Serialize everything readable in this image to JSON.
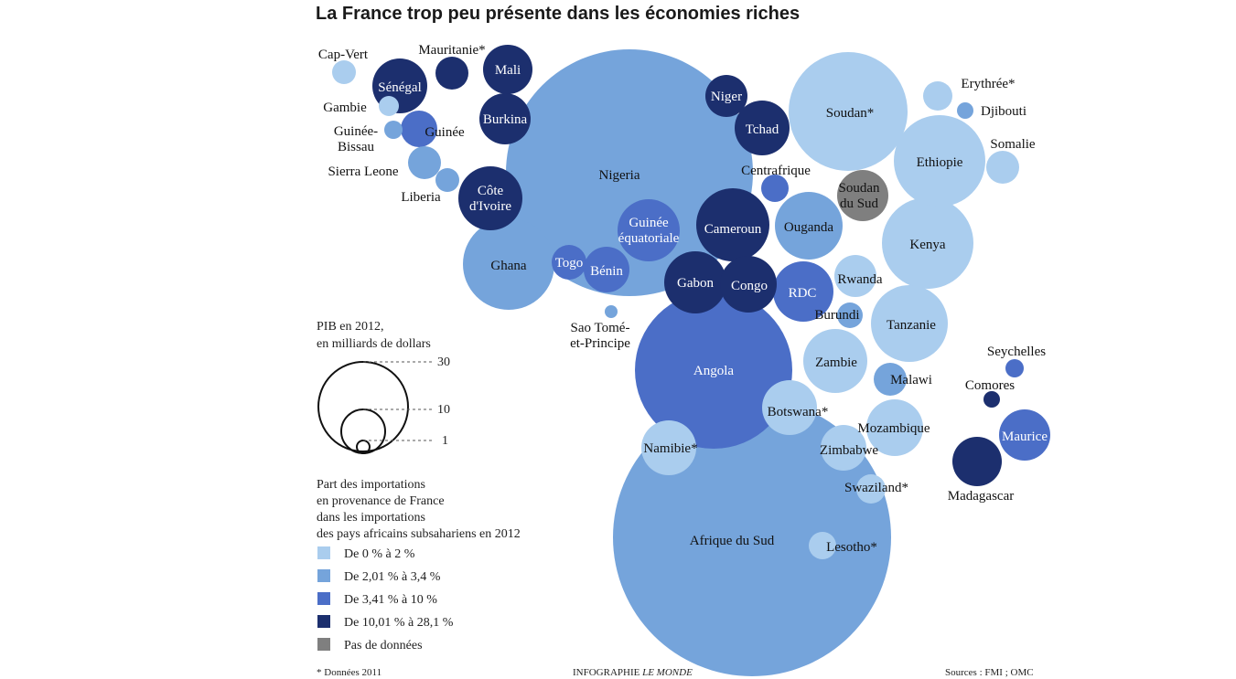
{
  "title": "La France trop peu présente dans les économies riches",
  "colors": {
    "cat1": "#aacdee",
    "cat2": "#75a4db",
    "cat3": "#4b6ec7",
    "cat4": "#1c2f6e",
    "nodata": "#7f7f7f"
  },
  "size_legend": {
    "title_line1": "PIB en 2012,",
    "title_line2": "en milliards de dollars",
    "values": [
      "30",
      "10",
      "1"
    ]
  },
  "color_legend": {
    "title_lines": [
      "Part des importations",
      "en provenance de France",
      "dans les importations",
      "des pays africains subsahariens en 2012"
    ],
    "items": [
      {
        "label": "De 0 % à 2 %",
        "color": "cat1"
      },
      {
        "label": "De 2,01 % à 3,4 %",
        "color": "cat2"
      },
      {
        "label": "De 3,41 % à 10 %",
        "color": "cat3"
      },
      {
        "label": "De 10,01 % à 28,1 %",
        "color": "cat4"
      },
      {
        "label": "Pas de données",
        "color": "nodata"
      }
    ]
  },
  "footer": {
    "note": "* Données 2011",
    "credit_prefix": "INFOGRAPHIE ",
    "credit_brand": "LE MONDE",
    "sources": "Sources : FMI ; OMC"
  },
  "countries": [
    {
      "id": "afrique-du-sud",
      "name": "Afrique du Sud",
      "cat": "cat2"
    },
    {
      "id": "nigeria",
      "name": "Nigeria",
      "cat": "cat2"
    },
    {
      "id": "angola",
      "name": "Angola",
      "cat": "cat3"
    },
    {
      "id": "soudan",
      "name": "Soudan*",
      "cat": "cat1"
    },
    {
      "id": "ghana",
      "name": "Ghana",
      "cat": "cat2"
    },
    {
      "id": "kenya",
      "name": "Kenya",
      "cat": "cat1"
    },
    {
      "id": "ethiopie",
      "name": "Ethiopie",
      "cat": "cat1"
    },
    {
      "id": "tanzanie",
      "name": "Tanzanie",
      "cat": "cat1"
    },
    {
      "id": "cote-divoire",
      "name": "Côte d'Ivoire",
      "cat": "cat4"
    },
    {
      "id": "cameroun",
      "name": "Cameroun",
      "cat": "cat4"
    },
    {
      "id": "ouganda",
      "name": "Ouganda",
      "cat": "cat2"
    },
    {
      "id": "zambie",
      "name": "Zambie",
      "cat": "cat1"
    },
    {
      "id": "rdc",
      "name": "RDC",
      "cat": "cat3"
    },
    {
      "id": "gabon",
      "name": "Gabon",
      "cat": "cat4"
    },
    {
      "id": "congo",
      "name": "Congo",
      "cat": "cat4"
    },
    {
      "id": "tchad",
      "name": "Tchad",
      "cat": "cat4"
    },
    {
      "id": "guinee-equatoriale",
      "name": "Guinée équatoriale",
      "cat": "cat3"
    },
    {
      "id": "mozambique",
      "name": "Mozambique",
      "cat": "cat1"
    },
    {
      "id": "botswana",
      "name": "Botswana*",
      "cat": "cat1"
    },
    {
      "id": "namibie",
      "name": "Namibie*",
      "cat": "cat1"
    },
    {
      "id": "zimbabwe",
      "name": "Zimbabwe",
      "cat": "cat1"
    },
    {
      "id": "madagascar",
      "name": "Madagascar",
      "cat": "cat4"
    },
    {
      "id": "maurice",
      "name": "Maurice",
      "cat": "cat3"
    },
    {
      "id": "senegal",
      "name": "Sénégal",
      "cat": "cat4"
    },
    {
      "id": "mali",
      "name": "Mali",
      "cat": "cat4"
    },
    {
      "id": "burkina",
      "name": "Burkina",
      "cat": "cat4"
    },
    {
      "id": "soudan-du-sud",
      "name": "Soudan du Sud",
      "cat": "nodata"
    },
    {
      "id": "benin",
      "name": "Bénin",
      "cat": "cat3"
    },
    {
      "id": "niger",
      "name": "Niger",
      "cat": "cat4"
    },
    {
      "id": "guinee",
      "name": "Guinée",
      "cat": "cat3"
    },
    {
      "id": "rwanda",
      "name": "Rwanda",
      "cat": "cat1"
    },
    {
      "id": "togo",
      "name": "Togo",
      "cat": "cat3"
    },
    {
      "id": "mauritanie",
      "name": "Mauritanie*",
      "cat": "cat4"
    },
    {
      "id": "malawi",
      "name": "Malawi",
      "cat": "cat2"
    },
    {
      "id": "sierra-leone",
      "name": "Sierra Leone",
      "cat": "cat2"
    },
    {
      "id": "centrafrique",
      "name": "Centrafrique",
      "cat": "cat3"
    },
    {
      "id": "burundi",
      "name": "Burundi",
      "cat": "cat2"
    },
    {
      "id": "swaziland",
      "name": "Swaziland*",
      "cat": "cat1"
    },
    {
      "id": "somalie",
      "name": "Somalie",
      "cat": "cat1"
    },
    {
      "id": "erythree",
      "name": "Erythrée*",
      "cat": "cat1"
    },
    {
      "id": "lesotho",
      "name": "Lesotho*",
      "cat": "cat1"
    },
    {
      "id": "cap-vert",
      "name": "Cap-Vert",
      "cat": "cat1"
    },
    {
      "id": "liberia",
      "name": "Liberia",
      "cat": "cat2"
    },
    {
      "id": "gambie",
      "name": "Gambie",
      "cat": "cat1"
    },
    {
      "id": "guinee-bissau",
      "name": "Guinée-Bissau",
      "cat": "cat2"
    },
    {
      "id": "djibouti",
      "name": "Djibouti",
      "cat": "cat2"
    },
    {
      "id": "seychelles",
      "name": "Seychelles",
      "cat": "cat3"
    },
    {
      "id": "comores",
      "name": "Comores",
      "cat": "cat4"
    },
    {
      "id": "sao-tome",
      "name": "Sao Tomé-et-Principe",
      "cat": "cat2"
    }
  ]
}
